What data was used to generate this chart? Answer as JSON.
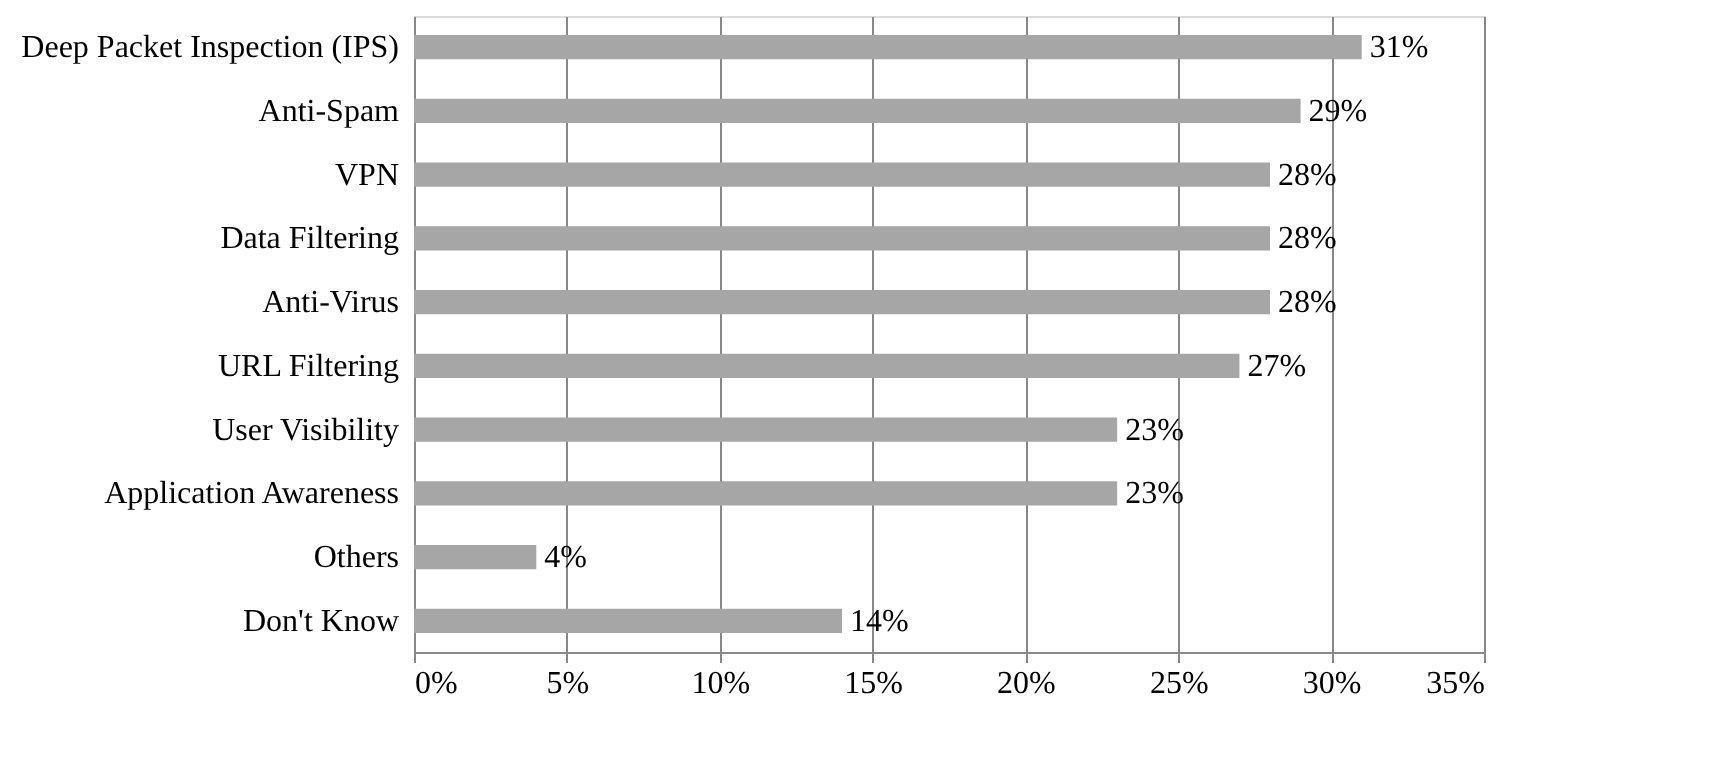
{
  "chart_data": {
    "type": "bar",
    "orientation": "horizontal",
    "categories": [
      "Deep Packet Inspection (IPS)",
      "Anti-Spam",
      "VPN",
      "Data Filtering",
      "Anti-Virus",
      "URL Filtering",
      "User Visibility",
      "Application Awareness",
      "Others",
      "Don't Know"
    ],
    "values": [
      31,
      29,
      28,
      28,
      28,
      27,
      23,
      23,
      4,
      14
    ],
    "value_labels": [
      "31%",
      "29%",
      "28%",
      "28%",
      "28%",
      "27%",
      "23%",
      "23%",
      "4%",
      "14%"
    ],
    "color": "#a6a6a6",
    "xlim": [
      0,
      35
    ],
    "xticks": [
      {
        "value": 0,
        "label": "0%"
      },
      {
        "value": 5,
        "label": "5%"
      },
      {
        "value": 10,
        "label": "10%"
      },
      {
        "value": 15,
        "label": "15%"
      },
      {
        "value": 20,
        "label": "20%"
      },
      {
        "value": 25,
        "label": "25%"
      },
      {
        "value": 30,
        "label": "30%"
      },
      {
        "value": 35,
        "label": "35%"
      }
    ],
    "grid": "x"
  }
}
